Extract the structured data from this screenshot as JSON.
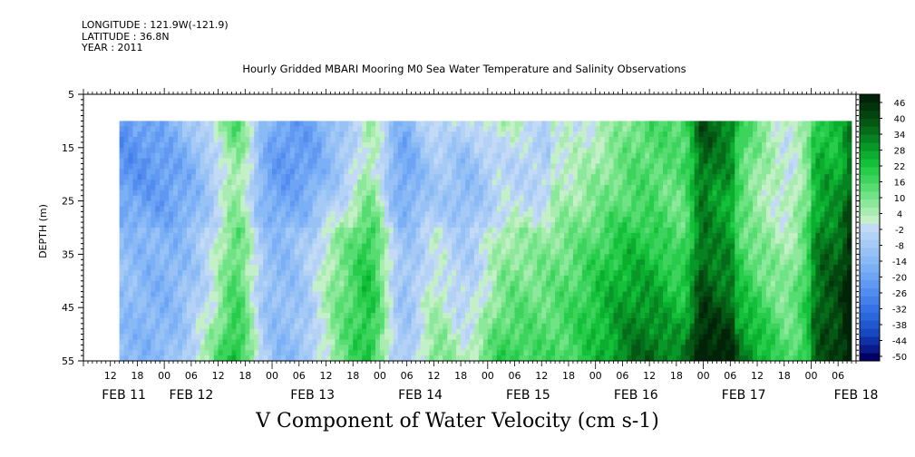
{
  "header": {
    "longitude": "LONGITUDE : 121.9W(-121.9)",
    "latitude": "LATITUDE : 36.8N",
    "year": "YEAR : 2011"
  },
  "chart_data": {
    "type": "heatmap",
    "title": "Hourly Gridded MBARI Mooring M0 Sea Water Temperature and Salinity Observations",
    "variable_title": "V Component of Water Velocity (cm s-1)",
    "ylabel": "DEPTH (m)",
    "ylim": [
      55,
      5
    ],
    "y_ticks": [
      5,
      15,
      25,
      35,
      45,
      55
    ],
    "x_range_hours_labels": [
      "FEB 11 06",
      "FEB 18 10"
    ],
    "x_hour_ticks": [
      "12",
      "18",
      "00",
      "06",
      "12",
      "18",
      "00",
      "06",
      "12",
      "18",
      "00",
      "06",
      "12",
      "18",
      "00",
      "06",
      "12",
      "18",
      "00",
      "06",
      "12",
      "18",
      "00",
      "06",
      "12",
      "18",
      "00",
      "06",
      "12",
      "18",
      "00",
      "06"
    ],
    "x_day_labels": [
      "FEB 11",
      "FEB 12",
      "FEB 13",
      "FEB 14",
      "FEB 15",
      "FEB 16",
      "FEB 17",
      "FEB 18"
    ],
    "data_depth_range": [
      10,
      55
    ],
    "data_time_start": "FEB 11 14",
    "colorbar": {
      "labels": [
        "46",
        "40",
        "34",
        "28",
        "22",
        "16",
        "10",
        "4",
        "-2",
        "-8",
        "-14",
        "-20",
        "-26",
        "-32",
        "-38",
        "-44",
        "-50"
      ],
      "levels": [
        -50,
        -47,
        -44,
        -41,
        -38,
        -35,
        -32,
        -29,
        -26,
        -23,
        -20,
        -17,
        -14,
        -11,
        -8,
        -5,
        -2,
        1,
        4,
        7,
        10,
        13,
        16,
        19,
        22,
        25,
        28,
        31,
        34,
        37,
        40,
        43,
        46,
        49
      ],
      "colors": [
        "#000066",
        "#0a1a8a",
        "#1030a8",
        "#1848c0",
        "#2058d0",
        "#2a66dc",
        "#3672e4",
        "#4480ea",
        "#528cef",
        "#6098f2",
        "#6ea4f4",
        "#7cb0f6",
        "#8abaf6",
        "#98c2f6",
        "#a6caf6",
        "#b4d2f6",
        "#c2daf6",
        "#c4f0c8",
        "#a8ecb0",
        "#8ce89a",
        "#70e484",
        "#56dc70",
        "#3cd45c",
        "#26cc4a",
        "#14c03a",
        "#0cae30",
        "#089828",
        "#068220",
        "#056c1a",
        "#045814",
        "#03440f",
        "#02330b",
        "#012408"
      ]
    }
  }
}
